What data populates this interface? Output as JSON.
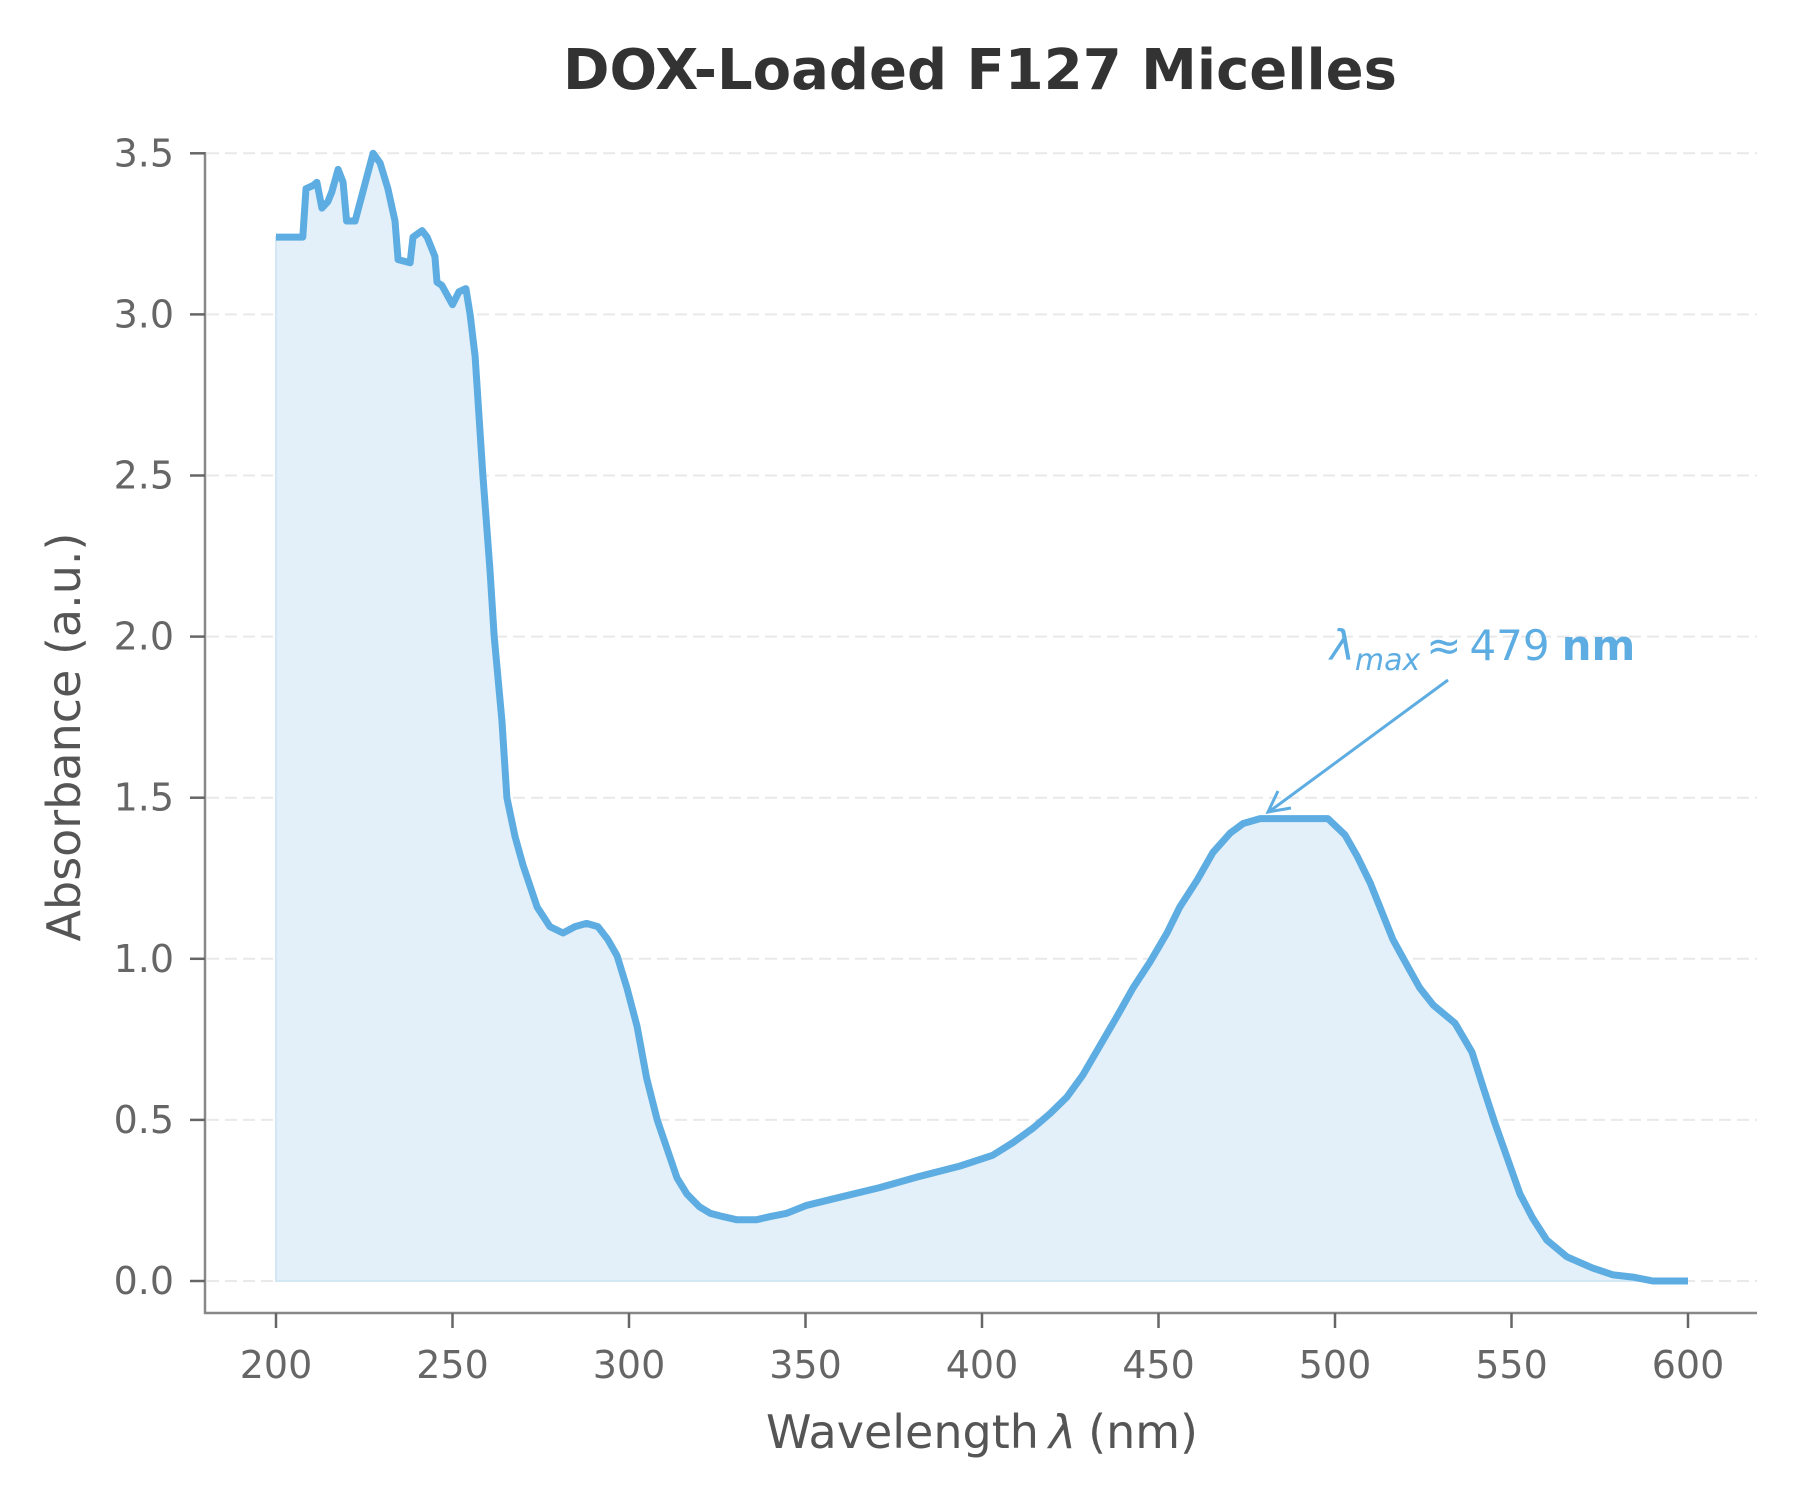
{
  "chart_data": {
    "type": "line",
    "title": "DOX-Loaded F127 Micelles",
    "xlabel_text": "Wavelength",
    "xlabel_symbol": "λ",
    "xlabel_unit": "(nm)",
    "ylabel": "Absorbance (a.u.)",
    "xlim": [
      180,
      620
    ],
    "ylim": [
      -0.1,
      3.5
    ],
    "x_ticks": [
      200,
      250,
      300,
      350,
      400,
      450,
      500,
      550,
      600
    ],
    "y_ticks": [
      0.0,
      0.5,
      1.0,
      1.5,
      2.0,
      2.5,
      3.0,
      3.5
    ],
    "y_tick_labels": [
      "0.0",
      "0.5",
      "1.0",
      "1.5",
      "2.0",
      "2.5",
      "3.0",
      "3.5"
    ],
    "grid": {
      "axis": "y",
      "style": "dashed"
    },
    "legend": null,
    "series": [
      {
        "name": "DOX-Loaded F127 Micelles",
        "color": "#5DADE2",
        "fill": true,
        "x": [
          200,
          207.6,
          208.5,
          210.5,
          211.6,
          213,
          214.7,
          215.8,
          217.6,
          219,
          220,
          222.4,
          227.5,
          229.5,
          231.7,
          233.7,
          234.6,
          238,
          238.8,
          241.4,
          242.8,
          245,
          245.6,
          247,
          250,
          251.8,
          253.8,
          255,
          256.4,
          258.6,
          260.6,
          261.8,
          264,
          265.4,
          267.7,
          270,
          274,
          277.6,
          281.3,
          284.7,
          288,
          291.2,
          294,
          296.6,
          299.4,
          302.3,
          305,
          308,
          310.8,
          313.6,
          316.4,
          320,
          323,
          326.6,
          330.6,
          336,
          340,
          344.7,
          350.4,
          359.8,
          371,
          382.4,
          393.8,
          403,
          408.8,
          414.5,
          419.3,
          424,
          428.6,
          433.4,
          438.2,
          442.8,
          447.6,
          452.4,
          456,
          461,
          465.4,
          470.3,
          474,
          478.8,
          498,
          502.8,
          506.2,
          510,
          513.3,
          516.4,
          520.4,
          524,
          527.8,
          534,
          538.8,
          542,
          545.3,
          548.7,
          552.4,
          556,
          560,
          565.7,
          573,
          578.8,
          584.4,
          590,
          600
        ],
        "y": [
          3.24,
          3.24,
          3.39,
          3.4,
          3.41,
          3.33,
          3.35,
          3.38,
          3.45,
          3.41,
          3.29,
          3.29,
          3.5,
          3.47,
          3.39,
          3.29,
          3.17,
          3.16,
          3.24,
          3.26,
          3.24,
          3.18,
          3.1,
          3.09,
          3.03,
          3.07,
          3.08,
          3.0,
          2.87,
          2.5,
          2.21,
          2.0,
          1.74,
          1.5,
          1.38,
          1.29,
          1.16,
          1.1,
          1.08,
          1.1,
          1.11,
          1.1,
          1.06,
          1.01,
          0.91,
          0.79,
          0.63,
          0.5,
          0.41,
          0.32,
          0.27,
          0.23,
          0.21,
          0.2,
          0.19,
          0.19,
          0.2,
          0.21,
          0.235,
          0.26,
          0.29,
          0.325,
          0.357,
          0.39,
          0.43,
          0.475,
          0.52,
          0.57,
          0.64,
          0.73,
          0.82,
          0.91,
          0.99,
          1.08,
          1.16,
          1.245,
          1.33,
          1.39,
          1.42,
          1.435,
          1.435,
          1.385,
          1.32,
          1.235,
          1.145,
          1.06,
          0.98,
          0.91,
          0.857,
          0.8,
          0.71,
          0.6,
          0.49,
          0.385,
          0.27,
          0.195,
          0.127,
          0.075,
          0.04,
          0.019,
          0.012,
          0.0,
          0.0
        ]
      }
    ],
    "annotations": [
      {
        "symbol": "λ",
        "subscript": "max",
        "approx": "≈",
        "value": "479",
        "unit": "nm",
        "text": "λmax ≈ 479 nm",
        "arrow_to": [
          479,
          1.435
        ],
        "arrow_from_text": [
          524,
          1.87
        ]
      }
    ]
  }
}
